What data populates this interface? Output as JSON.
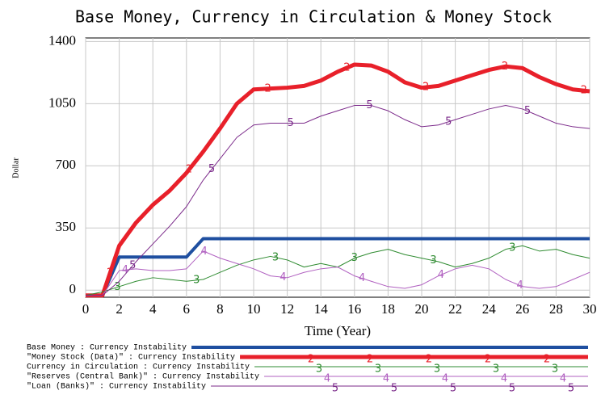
{
  "chart_data": {
    "type": "line",
    "title": "Base Money, Currency in Circulation & Money Stock",
    "x_label": "Time (Year)",
    "y_label": "Dollar",
    "x": [
      0,
      1,
      2,
      3,
      4,
      5,
      6,
      7,
      8,
      9,
      10,
      11,
      12,
      13,
      14,
      15,
      16,
      17,
      18,
      19,
      20,
      21,
      22,
      23,
      24,
      25,
      26,
      27,
      28,
      29,
      30
    ],
    "xlim": [
      0,
      30
    ],
    "xticks": [
      0,
      2,
      4,
      6,
      8,
      10,
      12,
      14,
      16,
      18,
      20,
      22,
      24,
      26,
      28,
      30
    ],
    "ylim": [
      -40,
      1420
    ],
    "yticks": [
      0,
      350,
      700,
      1050,
      1400
    ],
    "grid": true,
    "series": [
      {
        "name": "Base Money : Currency Instability",
        "color": "#1f4fa0",
        "values": [
          -30,
          -30,
          186,
          186,
          186,
          186,
          186,
          290,
          290,
          290,
          290,
          290,
          290,
          290,
          290,
          290,
          290,
          290,
          290,
          290,
          290,
          290,
          290,
          290,
          290,
          290,
          290,
          290,
          290,
          290,
          290
        ]
      },
      {
        "name": "\"Money Stock (Data)\" : Currency Instability",
        "color": "#e8202a",
        "marker": "2",
        "values": [
          -30,
          -30,
          250,
          380,
          480,
          560,
          660,
          780,
          910,
          1050,
          1130,
          1135,
          1140,
          1150,
          1180,
          1230,
          1270,
          1265,
          1230,
          1170,
          1140,
          1150,
          1180,
          1210,
          1240,
          1260,
          1250,
          1200,
          1160,
          1130,
          1120
        ]
      },
      {
        "name": "Currency in Circulation : Currency Instability",
        "color": "#2e8b30",
        "marker": "3",
        "values": [
          -30,
          -10,
          20,
          50,
          70,
          60,
          50,
          60,
          100,
          140,
          170,
          190,
          170,
          130,
          150,
          130,
          180,
          210,
          230,
          200,
          180,
          160,
          130,
          150,
          180,
          230,
          250,
          220,
          230,
          200,
          180
        ]
      },
      {
        "name": "\"Reserves (Central Bank)\" : Currency Instability",
        "color": "#b060c0",
        "marker": "4",
        "values": [
          -30,
          -30,
          110,
          120,
          110,
          110,
          120,
          220,
          180,
          150,
          120,
          80,
          70,
          100,
          120,
          130,
          80,
          50,
          20,
          10,
          30,
          80,
          120,
          140,
          120,
          60,
          20,
          10,
          20,
          60,
          100
        ]
      },
      {
        "name": "\"Loan (Banks)\" : Currency Instability",
        "color": "#7b2a8a",
        "marker": "5",
        "values": [
          -30,
          -30,
          50,
          160,
          260,
          360,
          470,
          620,
          740,
          860,
          930,
          940,
          940,
          940,
          980,
          1010,
          1040,
          1040,
          1010,
          960,
          920,
          930,
          960,
          990,
          1020,
          1040,
          1020,
          980,
          940,
          920,
          910
        ]
      }
    ]
  }
}
